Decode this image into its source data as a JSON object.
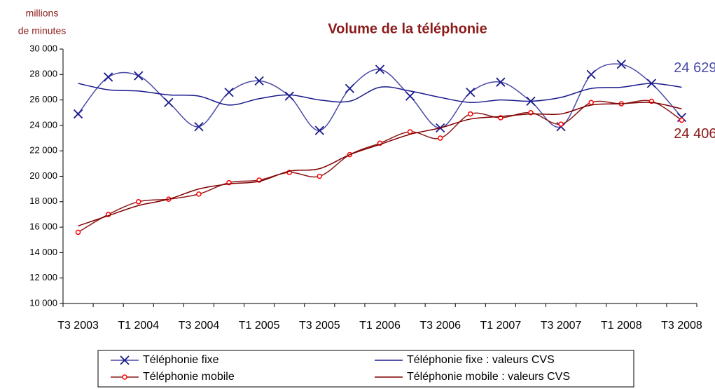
{
  "chart_data": {
    "type": "line",
    "title": "Volume de la téléphonie",
    "y_label": [
      "millions",
      "de minutes"
    ],
    "categories": [
      "T3 2003",
      null,
      "T1 2004",
      null,
      "T3 2004",
      null,
      "T1 2005",
      null,
      "T3 2005",
      null,
      "T1 2006",
      null,
      "T3 2006",
      null,
      "T1 2007",
      null,
      "T3 2007",
      null,
      "T1 2008",
      null,
      "T3 2008"
    ],
    "ylim": [
      10000,
      30000
    ],
    "yticks": [
      {
        "value": 10000,
        "label": "10 000"
      },
      {
        "value": 12000,
        "label": "12 000"
      },
      {
        "value": 14000,
        "label": "14 000"
      },
      {
        "value": 16000,
        "label": "16 000"
      },
      {
        "value": 18000,
        "label": "18 000"
      },
      {
        "value": 20000,
        "label": "20 000"
      },
      {
        "value": 22000,
        "label": "22 000"
      },
      {
        "value": 24000,
        "label": "24 000"
      },
      {
        "value": 26000,
        "label": "26 000"
      },
      {
        "value": 28000,
        "label": "28 000"
      },
      {
        "value": 30000,
        "label": "30 000"
      }
    ],
    "grid": false,
    "series": [
      {
        "name": "Téléphonie fixe",
        "color": "#4a4aa8",
        "marker": "x",
        "values": [
          24900,
          27800,
          27900,
          25800,
          23900,
          26600,
          27500,
          26300,
          23600,
          26900,
          28400,
          26300,
          23800,
          26600,
          27400,
          25900,
          23900,
          28000,
          28800,
          27300,
          24629
        ],
        "value_labels": [
          null,
          null,
          null,
          null,
          null,
          null,
          null,
          null,
          null,
          null,
          null,
          null,
          null,
          null,
          null,
          null,
          null,
          null,
          null,
          null,
          "24 629"
        ]
      },
      {
        "name": "Téléphonie fixe : valeurs CVS",
        "color": "#1a1a8c",
        "marker": "none",
        "values": [
          27300,
          26800,
          26700,
          26400,
          26300,
          25600,
          26100,
          26400,
          26000,
          25900,
          27000,
          26700,
          26200,
          25800,
          26000,
          25900,
          26200,
          26900,
          27000,
          27300,
          27000
        ]
      },
      {
        "name": "Téléphonie mobile",
        "color": "#8b1a1a",
        "marker": "circle",
        "values": [
          15600,
          17000,
          18000,
          18200,
          18600,
          19500,
          19700,
          20300,
          20000,
          21700,
          22600,
          23500,
          23000,
          24900,
          24600,
          25000,
          24100,
          25800,
          25700,
          25900,
          24406
        ],
        "value_labels": [
          null,
          null,
          null,
          null,
          null,
          null,
          null,
          null,
          null,
          null,
          null,
          null,
          null,
          null,
          null,
          null,
          null,
          null,
          null,
          null,
          "24 406"
        ]
      },
      {
        "name": "Téléphonie mobile : valeurs CVS",
        "color": "#800000",
        "marker": "none",
        "values": [
          16100,
          16900,
          17700,
          18200,
          19000,
          19400,
          19600,
          20400,
          20600,
          21700,
          22500,
          23300,
          23800,
          24500,
          24700,
          24900,
          24900,
          25600,
          25700,
          25800,
          25300
        ]
      }
    ]
  }
}
